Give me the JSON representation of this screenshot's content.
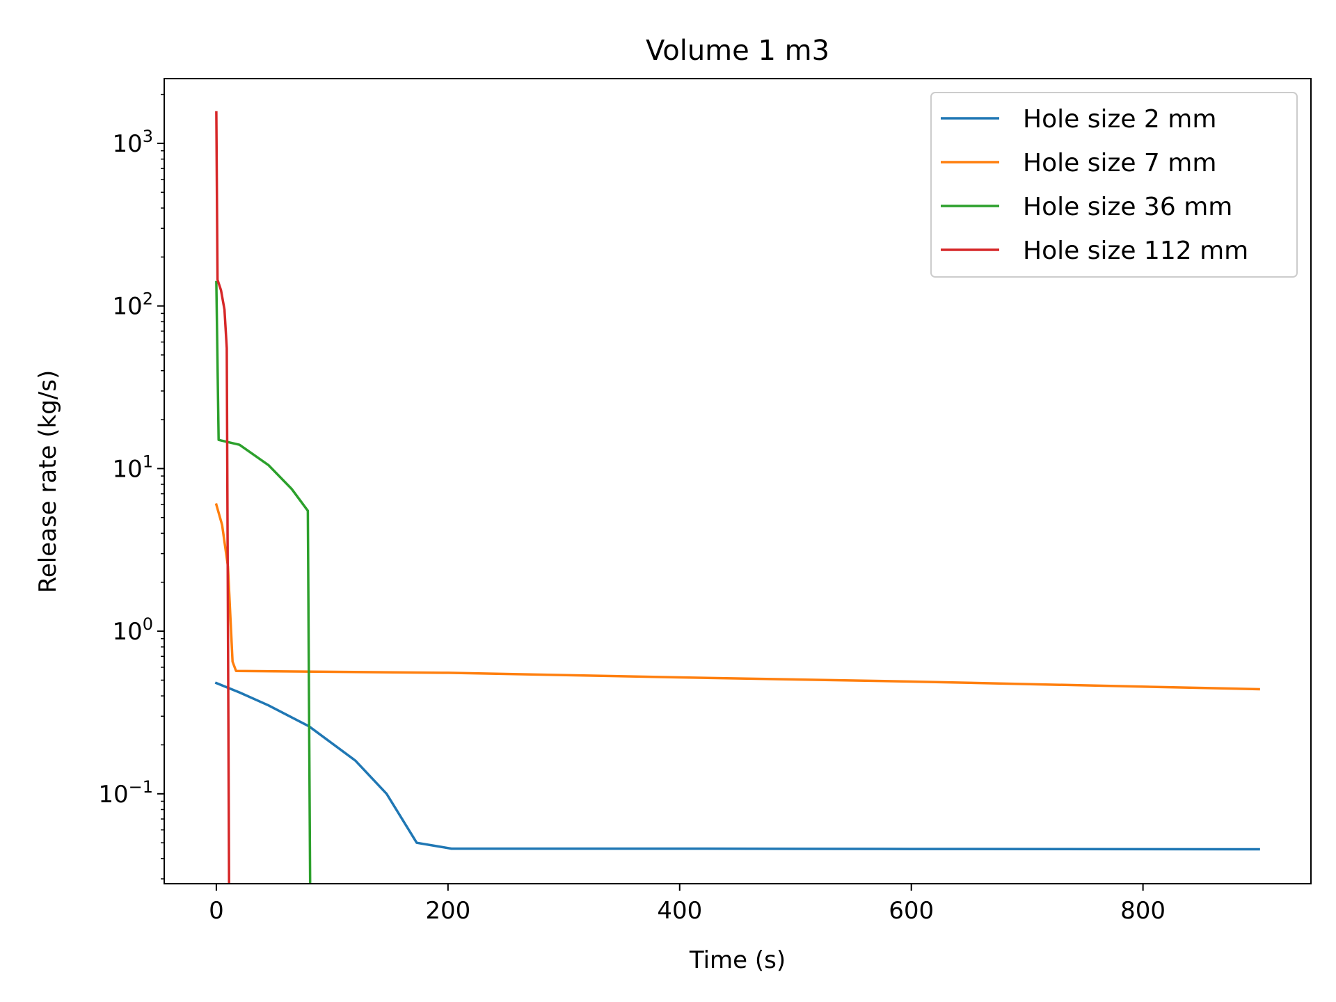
{
  "chart_data": {
    "type": "line",
    "title": "Volume 1 m3",
    "xlabel": "Time (s)",
    "ylabel": "Release rate (kg/s)",
    "xlim": [
      -45,
      945
    ],
    "ylim": [
      0.028,
      2500
    ],
    "yscale": "log",
    "grid": false,
    "legend": "top-right",
    "x_ticks": [
      {
        "value": 0,
        "label": "0"
      },
      {
        "value": 200,
        "label": "200"
      },
      {
        "value": 400,
        "label": "400"
      },
      {
        "value": 600,
        "label": "600"
      },
      {
        "value": 800,
        "label": "800"
      }
    ],
    "y_ticks": [
      {
        "value": 0.1,
        "base": "10",
        "exp": "−1"
      },
      {
        "value": 1,
        "base": "10",
        "exp": "0"
      },
      {
        "value": 10,
        "base": "10",
        "exp": "1"
      },
      {
        "value": 100,
        "base": "10",
        "exp": "2"
      },
      {
        "value": 1000,
        "base": "10",
        "exp": "3"
      }
    ],
    "series": [
      {
        "name": "Hole size 2 mm",
        "color": "#1f77b4",
        "points": [
          [
            0,
            0.48
          ],
          [
            20,
            0.42
          ],
          [
            45,
            0.35
          ],
          [
            80,
            0.26
          ],
          [
            120,
            0.16
          ],
          [
            147,
            0.1
          ],
          [
            173,
            0.05
          ],
          [
            203,
            0.046
          ],
          [
            400,
            0.046
          ],
          [
            600,
            0.0458
          ],
          [
            900,
            0.0456
          ]
        ]
      },
      {
        "name": "Hole size 7 mm",
        "color": "#ff7f0e",
        "points": [
          [
            0,
            6.0
          ],
          [
            5,
            4.5
          ],
          [
            10,
            2.5
          ],
          [
            14,
            0.65
          ],
          [
            17,
            0.57
          ],
          [
            200,
            0.555
          ],
          [
            400,
            0.52
          ],
          [
            600,
            0.49
          ],
          [
            900,
            0.44
          ]
        ]
      },
      {
        "name": "Hole size 36 mm",
        "color": "#2ca02c",
        "points": [
          [
            0,
            140
          ],
          [
            2,
            15.0
          ],
          [
            20,
            14.0
          ],
          [
            45,
            10.5
          ],
          [
            65,
            7.5
          ],
          [
            79,
            5.5
          ],
          [
            81,
            0.028
          ]
        ]
      },
      {
        "name": "Hole size 112 mm",
        "color": "#d62728",
        "points": [
          [
            0,
            1550
          ],
          [
            1,
            145
          ],
          [
            4,
            125
          ],
          [
            7,
            95
          ],
          [
            9,
            55
          ],
          [
            11,
            0.028
          ]
        ]
      }
    ]
  }
}
